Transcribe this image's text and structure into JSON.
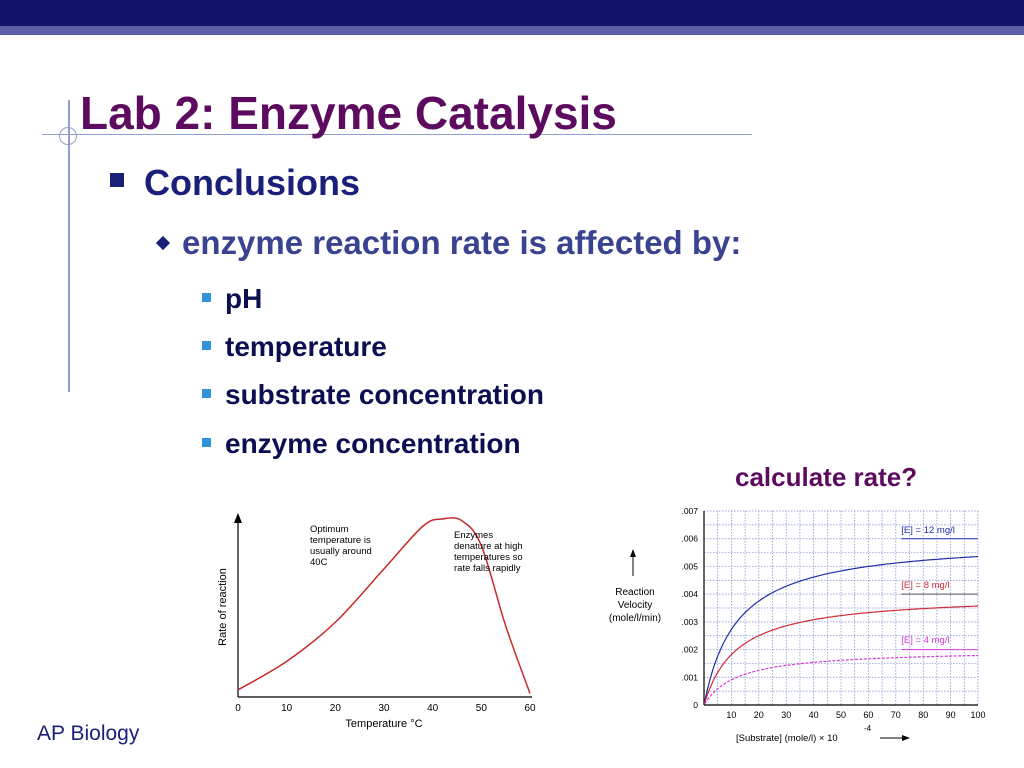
{
  "slide": {
    "title": "Lab 2: Enzyme Catalysis",
    "bullet1": "Conclusions",
    "bullet2": "enzyme reaction rate is affected by:",
    "items": [
      "pH",
      "temperature",
      "substrate concentration",
      "enzyme concentration"
    ],
    "calc_label": "calculate rate?",
    "footer": "AP Biology"
  },
  "chart_data": [
    {
      "type": "line",
      "xlabel": "Temperature °C",
      "ylabel": "Rate of reaction",
      "x_ticks": [
        0,
        10,
        20,
        30,
        40,
        50,
        60
      ],
      "xlim": [
        0,
        60
      ],
      "grid": false,
      "series": [
        {
          "x": [
            0,
            10,
            20,
            30,
            38,
            42,
            46,
            50,
            55,
            60
          ],
          "y": [
            0.04,
            0.2,
            0.42,
            0.72,
            0.96,
            1.0,
            0.99,
            0.85,
            0.4,
            0.02
          ]
        }
      ],
      "annotations": [
        [
          "Optimum",
          "temperature is",
          "usually around",
          "40C"
        ],
        [
          "Enzymes",
          "denature at high",
          "temperatures so",
          "rate falls rapidly"
        ]
      ],
      "line_color": "#c62a2a"
    },
    {
      "type": "line",
      "ylabel": [
        "Reaction",
        "Velocity",
        "(mole/l/min)"
      ],
      "xlabel": "[Substrate] (mole/l) × 10",
      "xlabel_exp": "-4",
      "y_ticks": [
        ".007",
        ".006",
        ".005",
        ".004",
        ".003",
        ".002",
        ".001",
        "0"
      ],
      "x_ticks": [
        10,
        20,
        30,
        40,
        50,
        60,
        70,
        80,
        90,
        100
      ],
      "xlim": [
        0,
        100
      ],
      "ylim": [
        0,
        0.007
      ],
      "grid": true,
      "series": [
        {
          "name": "[E] = 12 mg/l",
          "vmax": 0.006,
          "km": 12,
          "color": "#1f2fa8"
        },
        {
          "name": "[E] = 8 mg/l",
          "vmax": 0.004,
          "km": 12,
          "color": "#d02b36"
        },
        {
          "name": "[E] = 4 mg/l",
          "vmax": 0.002,
          "km": 12,
          "color": "#d23ad6"
        }
      ]
    }
  ]
}
